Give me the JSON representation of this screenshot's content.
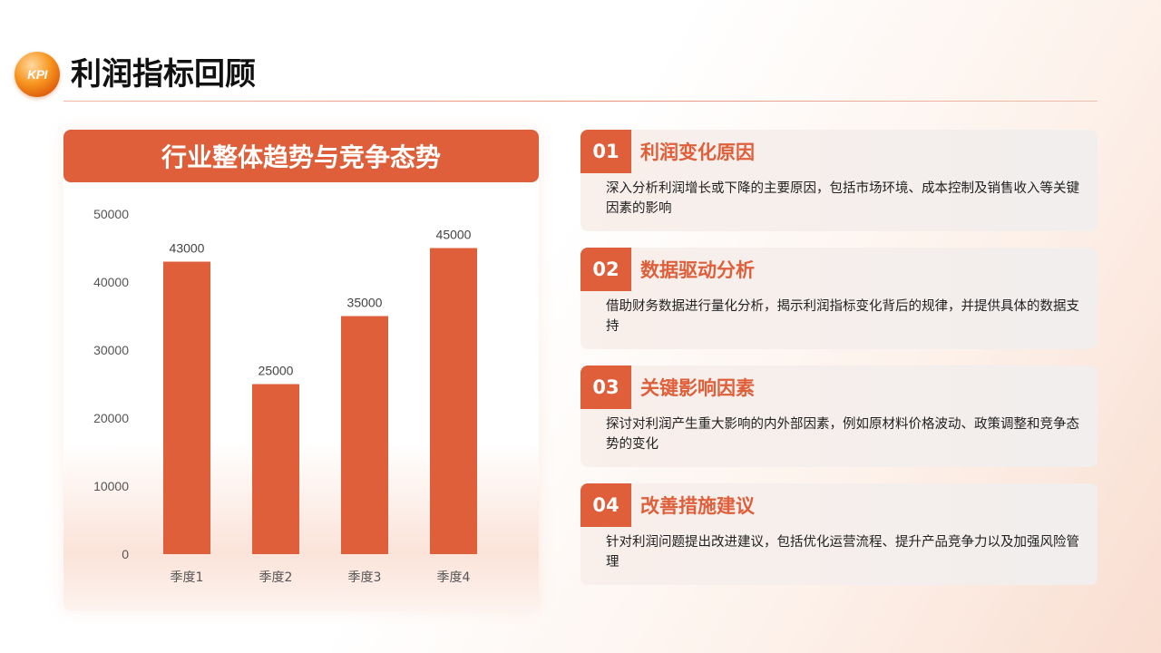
{
  "header": {
    "logo_text": "KPI",
    "title": "利润指标回顾"
  },
  "chart_panel": {
    "title": "行业整体趋势与竞争态势"
  },
  "chart_data": {
    "type": "bar",
    "categories": [
      "季度1",
      "季度2",
      "季度3",
      "季度4"
    ],
    "values": [
      43000,
      25000,
      35000,
      45000
    ],
    "ylim": [
      0,
      50000
    ],
    "yticks": [
      0,
      10000,
      20000,
      30000,
      40000,
      50000
    ],
    "grid": false,
    "data_labels": true,
    "bar_color": "#df5f3a"
  },
  "items": [
    {
      "num": "01",
      "heading": "利润变化原因",
      "desc": "深入分析利润增长或下降的主要原因，包括市场环境、成本控制及销售收入等关键因素的影响"
    },
    {
      "num": "02",
      "heading": "数据驱动分析",
      "desc": "借助财务数据进行量化分析，揭示利润指标变化背后的规律，并提供具体的数据支持"
    },
    {
      "num": "03",
      "heading": "关键影响因素",
      "desc": "探讨对利润产生重大影响的内外部因素，例如原材料价格波动、政策调整和竞争态势的变化"
    },
    {
      "num": "04",
      "heading": "改善措施建议",
      "desc": "针对利润问题提出改进建议，包括优化运营流程、提升产品竞争力以及加强风险管理"
    }
  ],
  "colors": {
    "accent": "#df5f3a",
    "title_text": "#111111"
  }
}
